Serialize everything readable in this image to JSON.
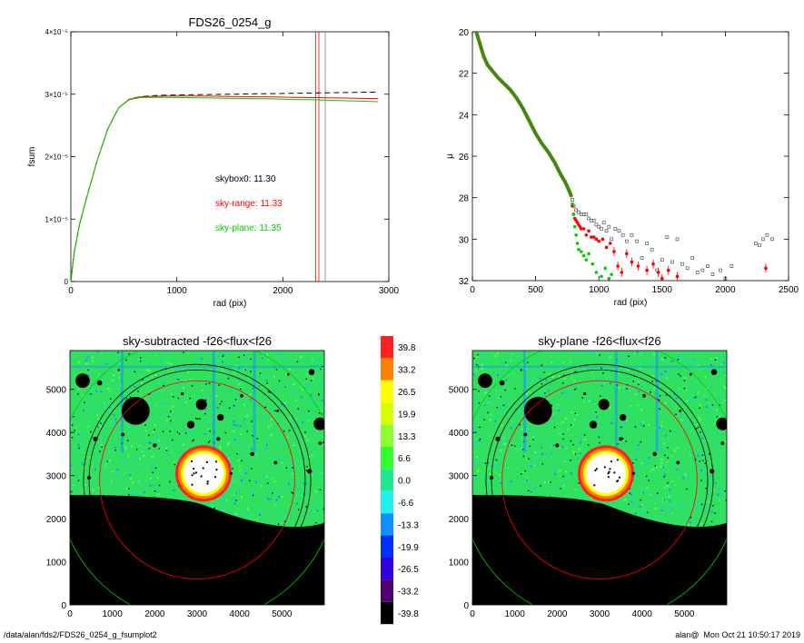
{
  "colors": {
    "red": "#ff0000",
    "green": "#00cc00",
    "black": "#000000",
    "gray": "#808080",
    "colorbar": [
      "#ff2020",
      "#ff7f00",
      "#ffff00",
      "#d8ff00",
      "#8cff30",
      "#30ff30",
      "#20e890",
      "#20f0f0",
      "#1090ff",
      "#0030ff",
      "#3000e0",
      "#500070",
      "#000000"
    ]
  },
  "chart_data": [
    {
      "type": "line",
      "title": "FDS26_0254_g",
      "xlabel": "rad (pix)",
      "ylabel": "fsum",
      "xlim": [
        0,
        3000
      ],
      "ylim": [
        0,
        4e-05
      ],
      "xticks": [
        "0",
        "1000",
        "2000",
        "3000"
      ],
      "yticks": [
        "0",
        "1×10⁻⁵",
        "2×10⁻⁵",
        "3×10⁻⁵",
        "4×10⁻⁵"
      ],
      "annotations": [
        "skybox0: 11.30",
        "sky-range: 11.33",
        "sky-plane: 11.35"
      ],
      "vlines": [
        {
          "x": 2310,
          "color": "red"
        },
        {
          "x": 2340,
          "color": "red"
        },
        {
          "x": 2400,
          "color": "gray"
        }
      ],
      "series": [
        {
          "color": "black",
          "style": "dashed",
          "x": [
            0,
            30,
            80,
            150,
            250,
            350,
            450,
            550,
            650,
            750,
            900,
            1100,
            1300,
            1500,
            1700,
            1900,
            2100,
            2300,
            2500,
            2700,
            2900
          ],
          "y": [
            0,
            4.5e-06,
            9e-06,
            1.35e-05,
            1.95e-05,
            2.45e-05,
            2.78e-05,
            2.92e-05,
            2.96e-05,
            2.975e-05,
            2.985e-05,
            2.99e-05,
            2.995e-05,
            3e-05,
            3.005e-05,
            3.01e-05,
            3.015e-05,
            3.02e-05,
            3.025e-05,
            3.03e-05,
            3.035e-05
          ]
        },
        {
          "color": "red",
          "style": "solid",
          "x": [
            0,
            30,
            80,
            150,
            250,
            350,
            450,
            550,
            650,
            750,
            900,
            1100,
            1300,
            1500,
            1700,
            1900,
            2100,
            2300,
            2500,
            2700,
            2900
          ],
          "y": [
            0,
            4.5e-06,
            9e-06,
            1.35e-05,
            1.95e-05,
            2.45e-05,
            2.78e-05,
            2.92e-05,
            2.955e-05,
            2.965e-05,
            2.97e-05,
            2.97e-05,
            2.968e-05,
            2.965e-05,
            2.96e-05,
            2.955e-05,
            2.95e-05,
            2.945e-05,
            2.94e-05,
            2.935e-05,
            2.93e-05
          ]
        },
        {
          "color": "green",
          "style": "solid",
          "x": [
            0,
            30,
            80,
            150,
            250,
            350,
            450,
            550,
            650,
            750,
            900,
            1100,
            1300,
            1500,
            1700,
            1900,
            2100,
            2300,
            2500,
            2700,
            2900
          ],
          "y": [
            0,
            4.5e-06,
            9e-06,
            1.35e-05,
            1.95e-05,
            2.45e-05,
            2.78e-05,
            2.91e-05,
            2.945e-05,
            2.95e-05,
            2.95e-05,
            2.945e-05,
            2.94e-05,
            2.935e-05,
            2.93e-05,
            2.925e-05,
            2.915e-05,
            2.91e-05,
            2.9e-05,
            2.89e-05,
            2.88e-05
          ]
        }
      ]
    },
    {
      "type": "scatter",
      "title": "",
      "xlabel": "rad (pix)",
      "ylabel": "μ",
      "xlim": [
        0,
        2500
      ],
      "ylim": [
        32,
        20
      ],
      "xticks": [
        "0",
        "500",
        "1000",
        "1500",
        "2000",
        "2500"
      ],
      "yticks": [
        "20",
        "22",
        "24",
        "26",
        "28",
        "30",
        "32"
      ],
      "profile": {
        "x": [
          30,
          60,
          90,
          120,
          160,
          200,
          250,
          300,
          350,
          400,
          450,
          500,
          550,
          600,
          650,
          700,
          730,
          760,
          780
        ],
        "y": [
          20.0,
          20.6,
          21.2,
          21.6,
          21.9,
          22.2,
          22.5,
          22.8,
          23.2,
          23.7,
          24.3,
          24.9,
          25.4,
          25.8,
          26.3,
          26.9,
          27.2,
          27.6,
          27.9
        ]
      },
      "series": [
        {
          "name": "",
          "color": "black",
          "marker": "open-square",
          "x": [
            790,
            800,
            820,
            840,
            860,
            880,
            900,
            920,
            940,
            960,
            980,
            1000,
            1020,
            1040,
            1060,
            1080,
            1100,
            1130,
            1160,
            1190,
            1220,
            1260,
            1300,
            1340,
            1380,
            1420,
            1460,
            1500,
            1540,
            1580,
            1620,
            1660,
            1700,
            1740,
            1780,
            1820,
            1860,
            1900,
            1960,
            2000,
            2050,
            2240,
            2270,
            2300,
            2330,
            2370
          ],
          "y": [
            28.1,
            28.4,
            28.6,
            28.7,
            28.8,
            28.8,
            28.8,
            29.0,
            29.1,
            29.1,
            29.3,
            29.4,
            29.5,
            29.2,
            29.6,
            29.4,
            30.0,
            29.5,
            29.6,
            29.8,
            30.1,
            29.8,
            30.1,
            30.9,
            30.2,
            30.5,
            31.5,
            31.0,
            29.9,
            31.1,
            30.0,
            31.2,
            31.4,
            30.9,
            31.6,
            31.5,
            31.3,
            31.7,
            31.5,
            31.9,
            31.3,
            30.2,
            30.3,
            30.0,
            29.8,
            30.0
          ]
        },
        {
          "name": "",
          "color": "red",
          "marker": "filled-circle",
          "x": [
            790,
            800,
            810,
            820,
            830,
            840,
            850,
            860,
            880,
            900,
            920,
            940,
            960,
            980,
            1000,
            1030,
            1060,
            1090,
            1120,
            1150,
            1180,
            1220,
            1260,
            1310,
            1380,
            1430,
            1470,
            1500,
            1550,
            1620,
            2320
          ],
          "y": [
            28.4,
            28.8,
            29.0,
            29.1,
            29.2,
            29.3,
            29.4,
            29.5,
            29.5,
            29.8,
            29.6,
            29.9,
            29.9,
            30.0,
            30.1,
            30.0,
            30.4,
            30.2,
            30.6,
            31.3,
            31.6,
            30.7,
            31.1,
            31.3,
            31.5,
            31.2,
            31.6,
            31.9,
            31.5,
            31.8,
            31.4
          ]
        },
        {
          "name": "",
          "color": "green",
          "marker": "filled-circle",
          "x": [
            790,
            800,
            810,
            820,
            830,
            840,
            860,
            880,
            900,
            920,
            950,
            980,
            1020,
            1050,
            1080,
            1100
          ],
          "y": [
            28.3,
            28.8,
            29.4,
            29.8,
            30.2,
            30.5,
            30.6,
            30.8,
            31.0,
            30.7,
            31.2,
            31.6,
            31.8,
            31.4,
            31.9,
            31.7
          ]
        }
      ]
    },
    {
      "type": "heatmap",
      "title": "sky-subtracted -f26<flux<f26",
      "xlabel": "",
      "ylabel": "",
      "xlim": [
        0,
        6000
      ],
      "ylim": [
        0,
        5900
      ],
      "xticks": [
        "0",
        "1000",
        "2000",
        "3000",
        "4000",
        "5000"
      ],
      "yticks": [
        "0",
        "1000",
        "2000",
        "3000",
        "4000",
        "5000"
      ]
    },
    {
      "type": "heatmap",
      "title": "sky-plane -f26<flux<f26",
      "xlabel": "",
      "ylabel": "",
      "xlim": [
        0,
        6000
      ],
      "ylim": [
        0,
        5900
      ],
      "xticks": [
        "0",
        "1000",
        "2000",
        "3000",
        "4000",
        "5000"
      ],
      "yticks": [
        "0",
        "1000",
        "2000",
        "3000",
        "4000",
        "5000"
      ]
    }
  ],
  "colorbar": {
    "labels": [
      "39.8",
      "33.2",
      "26.5",
      "19.9",
      "13.3",
      "6.6",
      "0.0",
      "-6.6",
      "-13.3",
      "-19.9",
      "-26.5",
      "-33.2",
      "-39.8"
    ]
  },
  "footer": {
    "path": "/data/alan/fds2/FDS26_0254_g_fsumplot2",
    "stamp": "alan@  Mon Oct 21 10:50:17 2019"
  }
}
